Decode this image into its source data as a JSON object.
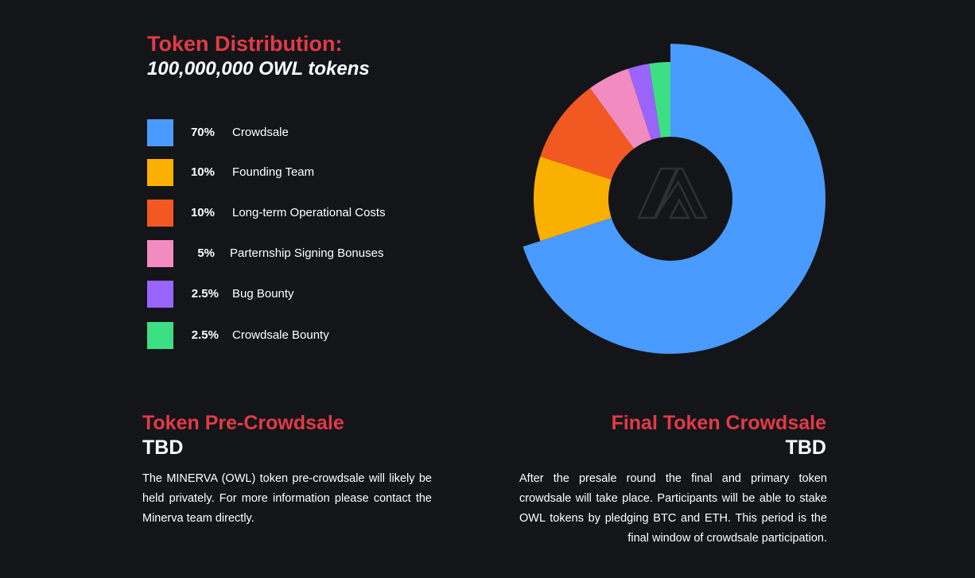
{
  "header": {
    "title": "Token Distribution:",
    "subtitle": "100,000,000 OWL tokens"
  },
  "chart_data": {
    "type": "pie",
    "categories": [
      "Crowdsale",
      "Founding Team",
      "Long-term Operational Costs",
      "Parternship Signing Bonuses",
      "Bug Bounty",
      "Crowdsale Bounty"
    ],
    "values": [
      70,
      10,
      10,
      5,
      2.5,
      2.5
    ],
    "labels": [
      "70%",
      "10%",
      "10%",
      "5%",
      "2.5%",
      "2.5%"
    ],
    "colors": [
      "#4a9bff",
      "#f9b000",
      "#f25822",
      "#f28bc0",
      "#9a64ff",
      "#3ddf84"
    ],
    "legend": "left",
    "center_icon": "minerva-logo-icon"
  },
  "pre_crowdsale": {
    "title": "Token Pre-Crowdsale",
    "status": "TBD",
    "body": "The MINERVA (OWL) token pre-crowdsale will likely be held privately. For more information please contact the Minerva team directly."
  },
  "final_crowdsale": {
    "title": "Final Token Crowdsale",
    "status": "TBD",
    "body": "After the presale round the final and primary token crowdsale will take place. Participants will be able to stake OWL tokens by pledging BTC and ETH. This period is the final window of crowdsale participation."
  }
}
